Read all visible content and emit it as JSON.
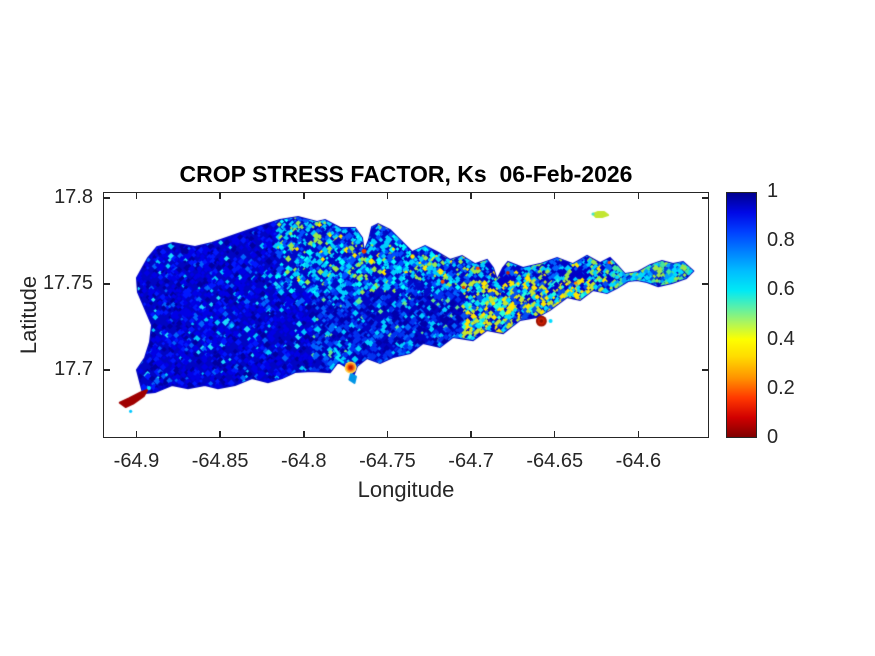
{
  "chart_data": {
    "type": "heatmap",
    "title": "CROP STRESS FACTOR, Ks  06-Feb-2026",
    "xlabel": "Longitude",
    "ylabel": "Latitude",
    "axes": {
      "xlim": [
        -64.92,
        -64.5578
      ],
      "ylim": [
        17.6605,
        17.8035
      ],
      "xticks": [
        {
          "v": -64.9,
          "label": "-64.9"
        },
        {
          "v": -64.85,
          "label": "-64.85"
        },
        {
          "v": -64.8,
          "label": "-64.8"
        },
        {
          "v": -64.75,
          "label": "-64.75"
        },
        {
          "v": -64.7,
          "label": "-64.7"
        },
        {
          "v": -64.65,
          "label": "-64.65"
        },
        {
          "v": -64.6,
          "label": "-64.6"
        }
      ],
      "yticks": [
        {
          "v": 17.7,
          "label": "17.7"
        },
        {
          "v": 17.75,
          "label": "17.75"
        },
        {
          "v": 17.8,
          "label": "17.8"
        }
      ],
      "grid": false,
      "box": true,
      "axis_color": "#262626"
    },
    "colorbar": {
      "position": "right",
      "value_min": 0,
      "value_max": 1,
      "colormap": "jet-reversed (1 = dark blue = no stress, 0 = dark red = max stress)",
      "ticks": [
        {
          "v": 0,
          "label": "0"
        },
        {
          "v": 0.2,
          "label": "0.2"
        },
        {
          "v": 0.4,
          "label": "0.4"
        },
        {
          "v": 0.6,
          "label": "0.6"
        },
        {
          "v": 0.8,
          "label": "0.8"
        },
        {
          "v": 1,
          "label": "1"
        }
      ],
      "gradient_stops_bottom_to_top": [
        {
          "pos": 0.0,
          "color": "#800000"
        },
        {
          "pos": 0.08,
          "color": "#D10000"
        },
        {
          "pos": 0.16,
          "color": "#FF3800"
        },
        {
          "pos": 0.24,
          "color": "#FF9100"
        },
        {
          "pos": 0.33,
          "color": "#FFDC00"
        },
        {
          "pos": 0.4,
          "color": "#FDFF00"
        },
        {
          "pos": 0.47,
          "color": "#AAF55F"
        },
        {
          "pos": 0.53,
          "color": "#5BF0A8"
        },
        {
          "pos": 0.6,
          "color": "#00E9F5"
        },
        {
          "pos": 0.68,
          "color": "#00BDFF"
        },
        {
          "pos": 0.76,
          "color": "#0080FF"
        },
        {
          "pos": 0.84,
          "color": "#0040FF"
        },
        {
          "pos": 0.92,
          "color": "#0008E6"
        },
        {
          "pos": 1.0,
          "color": "#00008F"
        }
      ]
    },
    "island": {
      "base_color": "#0005C4",
      "seed": 1234,
      "outline": [
        [
          -64.8961,
          17.6866
        ],
        [
          -64.8997,
          17.7
        ],
        [
          -64.8949,
          17.707
        ],
        [
          -64.8919,
          17.7163
        ],
        [
          -64.8907,
          17.7262
        ],
        [
          -64.8991,
          17.7454
        ],
        [
          -64.8997,
          17.7535
        ],
        [
          -64.8931,
          17.7651
        ],
        [
          -64.8877,
          17.7715
        ],
        [
          -64.8782,
          17.7739
        ],
        [
          -64.865,
          17.7715
        ],
        [
          -64.8548,
          17.7739
        ],
        [
          -64.8411,
          17.7785
        ],
        [
          -64.8273,
          17.7832
        ],
        [
          -64.8142,
          17.7872
        ],
        [
          -64.8034,
          17.789
        ],
        [
          -64.7921,
          17.7861
        ],
        [
          -64.7873,
          17.7872
        ],
        [
          -64.7783,
          17.7826
        ],
        [
          -64.7694,
          17.7826
        ],
        [
          -64.7652,
          17.7768
        ],
        [
          -64.764,
          17.7686
        ],
        [
          -64.761,
          17.7756
        ],
        [
          -64.7592,
          17.7831
        ],
        [
          -64.7556,
          17.7849
        ],
        [
          -64.7484,
          17.7814
        ],
        [
          -64.7425,
          17.7756
        ],
        [
          -64.7353,
          17.7686
        ],
        [
          -64.7275,
          17.7721
        ],
        [
          -64.7204,
          17.7686
        ],
        [
          -64.7126,
          17.764
        ],
        [
          -64.7054,
          17.7663
        ],
        [
          -64.6977,
          17.7616
        ],
        [
          -64.6905,
          17.764
        ],
        [
          -64.6869,
          17.7593
        ],
        [
          -64.6845,
          17.7523
        ],
        [
          -64.6809,
          17.7593
        ],
        [
          -64.6779,
          17.7628
        ],
        [
          -64.669,
          17.7593
        ],
        [
          -64.6588,
          17.7616
        ],
        [
          -64.6486,
          17.7651
        ],
        [
          -64.6391,
          17.7616
        ],
        [
          -64.6307,
          17.7663
        ],
        [
          -64.6229,
          17.7622
        ],
        [
          -64.617,
          17.7651
        ],
        [
          -64.6128,
          17.761
        ],
        [
          -64.608,
          17.7558
        ],
        [
          -64.6002,
          17.757
        ],
        [
          -64.593,
          17.761
        ],
        [
          -64.5859,
          17.7634
        ],
        [
          -64.5793,
          17.7616
        ],
        [
          -64.5733,
          17.7628
        ],
        [
          -64.5673,
          17.7576
        ],
        [
          -64.5715,
          17.7535
        ],
        [
          -64.5799,
          17.7506
        ],
        [
          -64.5882,
          17.7488
        ],
        [
          -64.5948,
          17.7512
        ],
        [
          -64.6008,
          17.7523
        ],
        [
          -64.6062,
          17.7517
        ],
        [
          -64.6128,
          17.7477
        ],
        [
          -64.6188,
          17.7448
        ],
        [
          -64.6271,
          17.7465
        ],
        [
          -64.6349,
          17.7407
        ],
        [
          -64.6427,
          17.7424
        ],
        [
          -64.6529,
          17.7349
        ],
        [
          -64.6606,
          17.7308
        ],
        [
          -64.6708,
          17.7291
        ],
        [
          -64.6809,
          17.7215
        ],
        [
          -64.6905,
          17.7233
        ],
        [
          -64.6989,
          17.7174
        ],
        [
          -64.7108,
          17.7192
        ],
        [
          -64.7186,
          17.7134
        ],
        [
          -64.7287,
          17.7157
        ],
        [
          -64.7365,
          17.7099
        ],
        [
          -64.7467,
          17.7076
        ],
        [
          -64.7544,
          17.7041
        ],
        [
          -64.7622,
          17.707
        ],
        [
          -64.7682,
          17.7023
        ],
        [
          -64.77,
          17.6977
        ],
        [
          -64.7742,
          17.7017
        ],
        [
          -64.7795,
          17.7047
        ],
        [
          -64.7843,
          17.6988
        ],
        [
          -64.7951,
          17.6994
        ],
        [
          -64.8053,
          17.6988
        ],
        [
          -64.813,
          17.6953
        ],
        [
          -64.8214,
          17.693
        ],
        [
          -64.831,
          17.6953
        ],
        [
          -64.8411,
          17.6913
        ],
        [
          -64.8513,
          17.6895
        ],
        [
          -64.8591,
          17.6913
        ],
        [
          -64.8692,
          17.6895
        ],
        [
          -64.8788,
          17.6913
        ],
        [
          -64.8889,
          17.6872
        ]
      ],
      "regions": [
        {
          "name": "east-head",
          "lon": [
            -64.615,
            -64.49
          ],
          "lat": [
            17.0,
            18.0
          ],
          "density": 0.95,
          "colors": [
            [
              "#46E69B",
              0.28
            ],
            [
              "#9BE64B",
              0.25
            ],
            [
              "#00DCFF",
              0.2
            ],
            [
              "#00A0FF",
              0.12
            ],
            [
              "#0046E6",
              0.15
            ]
          ]
        },
        {
          "name": "east-yellow-band",
          "lon": [
            -64.705,
            -64.615
          ],
          "lat": [
            17.7,
            17.753
          ],
          "density": 0.92,
          "colors": [
            [
              "#FFE600",
              0.2
            ],
            [
              "#C3E632",
              0.2
            ],
            [
              "#00DCFF",
              0.2
            ],
            [
              "#28FFDC",
              0.08
            ],
            [
              "#0550F0",
              0.17
            ],
            [
              "#0000C8",
              0.15
            ]
          ]
        },
        {
          "name": "east-north",
          "lon": [
            -64.705,
            -64.615
          ],
          "lat": [
            17.753,
            18.0
          ],
          "density": 0.85,
          "colors": [
            [
              "#00CFFF",
              0.28
            ],
            [
              "#0064FF",
              0.22
            ],
            [
              "#9BE64B",
              0.14
            ],
            [
              "#FFE600",
              0.06
            ],
            [
              "#0000C8",
              0.3
            ]
          ]
        },
        {
          "name": "north-central",
          "lon": [
            -64.815,
            -64.705
          ],
          "lat": [
            17.744,
            18.0
          ],
          "density": 0.8,
          "colors": [
            [
              "#00CFFF",
              0.26
            ],
            [
              "#00FFFF",
              0.1
            ],
            [
              "#0050FF",
              0.22
            ],
            [
              "#9BE64B",
              0.12
            ],
            [
              "#FFE600",
              0.04
            ],
            [
              "#000AC8",
              0.26
            ]
          ]
        },
        {
          "name": "central",
          "lon": [
            -64.795,
            -64.705
          ],
          "lat": [
            17.0,
            17.744
          ],
          "density": 0.62,
          "colors": [
            [
              "#0032F0",
              0.36
            ],
            [
              "#0064FF",
              0.2
            ],
            [
              "#00CFFF",
              0.14
            ],
            [
              "#64E68C",
              0.04
            ],
            [
              "#0000AA",
              0.26
            ]
          ]
        },
        {
          "name": "west",
          "lon": [
            -65.0,
            -64.795
          ],
          "lat": [
            17.0,
            18.0
          ],
          "density": 0.55,
          "colors": [
            [
              "#0000E6",
              0.42
            ],
            [
              "#0019FF",
              0.22
            ],
            [
              "#0000A0",
              0.2
            ],
            [
              "#0064FF",
              0.08
            ],
            [
              "#00C8FF",
              0.05
            ],
            [
              "#1EDCFF",
              0.03
            ]
          ]
        }
      ],
      "features": {
        "polygons": [
          {
            "name": "sandy-point-red-spit",
            "color": "#A00000",
            "points": [
              [
                -64.91,
                17.681
              ],
              [
                -64.9045,
                17.6835
              ],
              [
                -64.8975,
                17.687
              ],
              [
                -64.8935,
                17.6885
              ],
              [
                -64.8955,
                17.685
              ],
              [
                -64.902,
                17.6805
              ],
              [
                -64.9065,
                17.6785
              ]
            ]
          },
          {
            "name": "buck-island",
            "color": "#C3E632",
            "points": [
              [
                -64.6271,
                17.7907
              ],
              [
                -64.6241,
                17.7919
              ],
              [
                -64.6205,
                17.7919
              ],
              [
                -64.6181,
                17.7901
              ],
              [
                -64.6217,
                17.789
              ],
              [
                -64.6253,
                17.789
              ]
            ]
          },
          {
            "name": "south-islet",
            "color": "#0096E6",
            "points": [
              [
                -64.7718,
                17.6978
              ],
              [
                -64.7688,
                17.6962
              ],
              [
                -64.7697,
                17.6925
              ],
              [
                -64.7727,
                17.6944
              ]
            ]
          }
        ],
        "blobs": [
          {
            "name": "south-lagoon-stress-spot",
            "center": [
              -64.772,
              17.7015
            ],
            "rings": [
              {
                "r": 6,
                "color": "#FFD24D"
              },
              {
                "r": 4.5,
                "color": "#FF8C1A"
              },
              {
                "r": 3,
                "color": "#E63900"
              },
              {
                "r": 1.7,
                "color": "#B31B00"
              }
            ]
          },
          {
            "name": "east-stress-spot",
            "center": [
              -64.658,
              17.7285
            ],
            "rings": [
              {
                "r": 5.5,
                "color": "#A01400"
              },
              {
                "r": 3.5,
                "color": "#C81E00"
              },
              {
                "r": 1.8,
                "color": "#8C0F00"
              }
            ]
          }
        ],
        "dots": [
          {
            "p": [
              -64.764,
              17.769
            ],
            "color": "#E63900",
            "r": 2.4
          },
          {
            "p": [
              -64.717,
              17.7513
            ],
            "color": "#FF4500",
            "r": 2.0
          },
          {
            "p": [
              -64.7045,
              17.748
            ],
            "color": "#E63900",
            "r": 1.8
          },
          {
            "p": [
              -64.696,
              17.7592
            ],
            "color": "#FF4500",
            "r": 1.8
          },
          {
            "p": [
              -64.678,
              17.7565
            ],
            "color": "#CC2200",
            "r": 1.8
          },
          {
            "p": [
              -64.735,
              17.766
            ],
            "color": "#FFE600",
            "r": 2.2
          },
          {
            "p": [
              -64.6375,
              17.7505
            ],
            "color": "#FF8C00",
            "r": 1.7
          },
          {
            "p": [
              -64.6175,
              17.7625
            ],
            "color": "#FF4500",
            "r": 1.5
          },
          {
            "p": [
              -64.8925,
              17.6895
            ],
            "color": "#00E6FF",
            "r": 2.0
          },
          {
            "p": [
              -64.9035,
              17.676
            ],
            "color": "#00C8FF",
            "r": 1.6
          },
          {
            "p": [
              -64.6525,
              17.7285
            ],
            "color": "#00DCFF",
            "r": 2.0
          },
          {
            "p": [
              -64.6271,
              17.7907
            ],
            "color": "#46E6C8",
            "r": 1.6
          }
        ],
        "squiggle": {
          "points": [
            [
              -64.7815,
              17.7125
            ],
            [
              -64.7785,
              17.7085
            ],
            [
              -64.7805,
              17.7072
            ],
            [
              -64.7765,
              17.7045
            ]
          ],
          "color": "#00E6FF",
          "width": 2.5
        }
      }
    }
  }
}
